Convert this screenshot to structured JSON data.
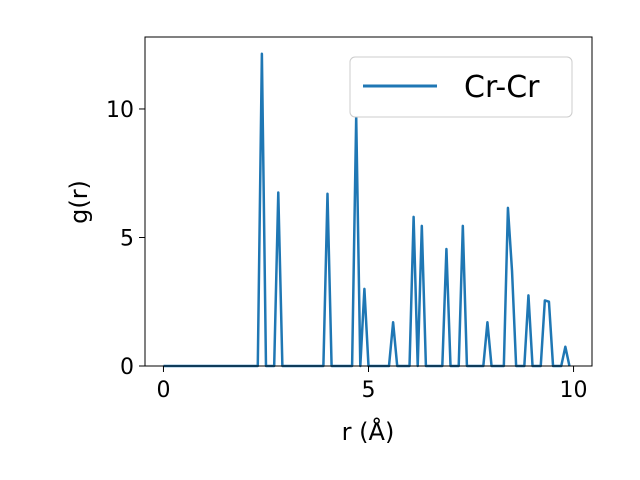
{
  "chart_data": {
    "type": "line",
    "xlabel": "r (Å)",
    "ylabel": "g(r)",
    "xlim": [
      -0.45,
      10.45
    ],
    "ylim": [
      0,
      12.8
    ],
    "xticks": [
      0,
      5,
      10
    ],
    "yticks": [
      0,
      5,
      10
    ],
    "grid": false,
    "legend_position": "top-right",
    "series": [
      {
        "name": "Cr-Cr",
        "color": "#1f77b4",
        "x": [
          0,
          2.3,
          2.4,
          2.5,
          2.7,
          2.8,
          2.9,
          3.9,
          4.0,
          4.1,
          4.6,
          4.7,
          4.8,
          4.9,
          5.0,
          5.5,
          5.6,
          5.7,
          6.0,
          6.1,
          6.2,
          6.3,
          6.4,
          6.8,
          6.9,
          7.0,
          7.2,
          7.3,
          7.4,
          7.8,
          7.9,
          8.0,
          8.3,
          8.4,
          8.5,
          8.6,
          8.8,
          8.9,
          9.0,
          9.2,
          9.3,
          9.4,
          9.5,
          9.7,
          9.8,
          9.9
        ],
        "y": [
          0,
          0,
          12.15,
          0,
          0,
          6.75,
          0,
          0,
          6.7,
          0,
          0,
          9.7,
          0,
          3.0,
          0,
          0,
          1.7,
          0,
          0,
          5.8,
          0,
          5.45,
          0,
          0,
          4.55,
          0,
          0,
          5.45,
          0,
          0,
          1.7,
          0,
          0,
          6.15,
          3.7,
          0,
          0,
          2.75,
          0,
          0,
          2.55,
          2.5,
          0,
          0,
          0.75,
          0
        ]
      }
    ]
  }
}
